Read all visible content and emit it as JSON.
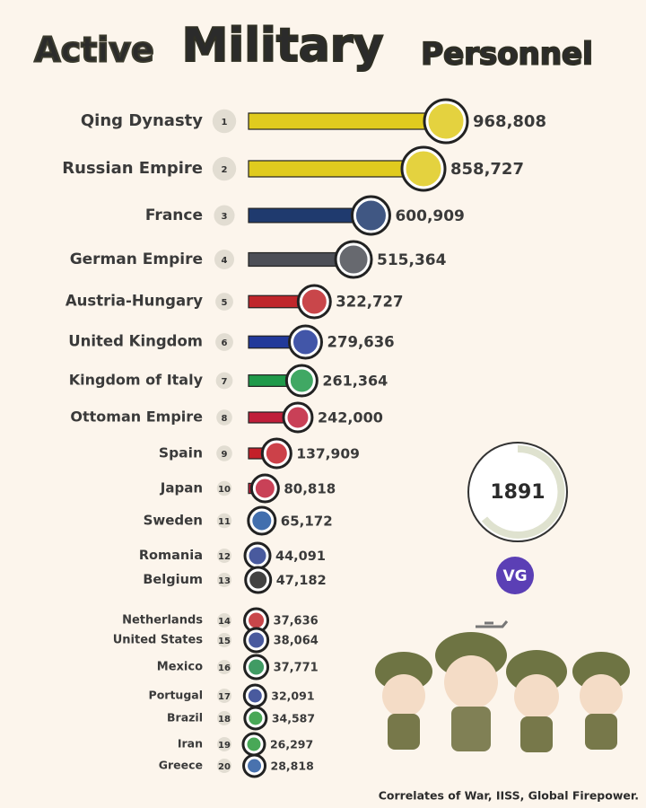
{
  "chart_data": {
    "type": "bar",
    "orientation": "horizontal",
    "title_parts": [
      "Active",
      "Military",
      "Personnel"
    ],
    "categories": [
      "Qing Dynasty",
      "Russian Empire",
      "France",
      "German Empire",
      "Austria-Hungary",
      "United Kingdom",
      "Kingdom of Italy",
      "Ottoman Empire",
      "Spain",
      "Japan",
      "Sweden",
      "Romania",
      "Belgium",
      "Netherlands",
      "United States",
      "Mexico",
      "Portugal",
      "Brazil",
      "Iran",
      "Greece"
    ],
    "ranks": [
      1,
      2,
      3,
      4,
      5,
      6,
      7,
      8,
      9,
      10,
      11,
      12,
      13,
      14,
      15,
      16,
      17,
      18,
      19,
      20
    ],
    "values": [
      968808,
      858727,
      600909,
      515364,
      322727,
      279636,
      261364,
      242000,
      137909,
      80818,
      65172,
      44091,
      47182,
      37636,
      38064,
      37771,
      32091,
      34587,
      26297,
      28818
    ],
    "value_labels": [
      "968,808",
      "858,727",
      "600,909",
      "515,364",
      "322,727",
      "279,636",
      "261,364",
      "242,000",
      "137,909",
      "80,818",
      "65,172",
      "44,091",
      "47,182",
      "37,636",
      "38,064",
      "37,771",
      "32,091",
      "34,587",
      "26,297",
      "28,818"
    ],
    "colors": [
      "#e0cb1e",
      "#e0cb1e",
      "#1f3a6e",
      "#4d4f57",
      "#c0262b",
      "#22399a",
      "#1f9a4a",
      "#c01f3a",
      "#c4202a",
      "#c0203a",
      "#2257a0",
      "#2a3e8e",
      "#222222",
      "#c0262b",
      "#2a3e8e",
      "#1f8a4a",
      "#2a3e8e",
      "#2a9a3a",
      "#2a9a3a",
      "#2a5aa0"
    ],
    "xlim": [
      0,
      968808
    ],
    "year": "1891",
    "logo": "VG",
    "source": "Correlates of War, IISS, Global Firepower."
  }
}
